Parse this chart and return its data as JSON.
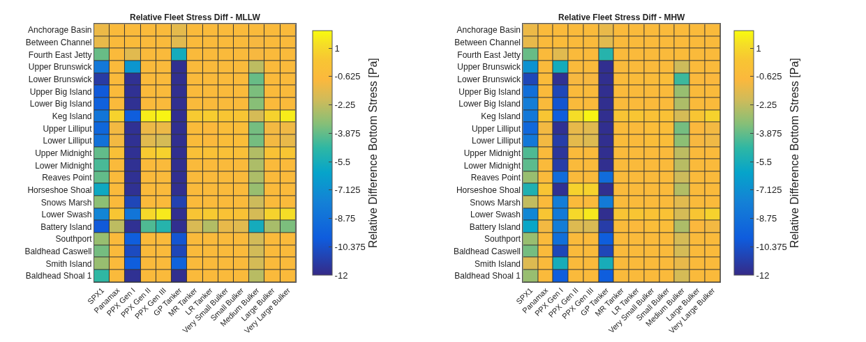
{
  "chart_data": [
    {
      "type": "heatmap",
      "title": "Relative Fleet Stress Diff - MLLW",
      "clabel": "Relative Difference Bottom Stress [Pa]",
      "categories": [
        "SPX1",
        "Panamax",
        "PPX Gen I",
        "PPX Gen II",
        "PPX Gen III",
        "GP Tanker",
        "MR Tanker",
        "LR Tanker",
        "Very Small Bulker",
        "Small Bulker",
        "Medium Bulker",
        "Large Bulker",
        "Very Large Bulker"
      ],
      "y_categories": [
        "Anchorage Basin",
        "Between Channel",
        "Fourth East Jetty",
        "Upper Brunswick",
        "Lower Brunswick",
        "Upper Big Island",
        "Lower Big Island",
        "Keg Island",
        "Upper Lilliput",
        "Lower Lilliput",
        "Upper Midnight",
        "Lower Midnight",
        "Reaves Point",
        "Horseshoe Shoal",
        "Snows Marsh",
        "Lower Swash",
        "Battery Island",
        "Southport",
        "Baldhead Caswell",
        "Smith Island",
        "Baldhead Shoal 1"
      ],
      "cells": [
        [
          -1.2,
          -0.6,
          -0.6,
          -0.6,
          -0.6,
          -1.4,
          -0.6,
          -0.6,
          -0.6,
          -0.6,
          -0.6,
          -0.6,
          -0.6
        ],
        [
          -1.3,
          -0.6,
          -0.5,
          -0.6,
          -0.6,
          -1.5,
          -0.6,
          -0.6,
          -0.6,
          -0.6,
          -0.9,
          -0.6,
          -0.6
        ],
        [
          -3.8,
          -0.6,
          -1.5,
          -0.6,
          -0.6,
          -5.6,
          -0.6,
          -0.6,
          -0.6,
          -0.6,
          -0.9,
          -0.6,
          -0.6
        ],
        [
          -8.3,
          -0.6,
          -6.8,
          -0.6,
          -0.6,
          -11.8,
          -0.6,
          -0.6,
          -0.6,
          -0.6,
          -2.3,
          -0.6,
          -0.6
        ],
        [
          -11.3,
          -0.6,
          -11.7,
          -0.6,
          -0.6,
          -11.8,
          -0.6,
          -0.6,
          -0.6,
          -0.6,
          -3.8,
          -0.6,
          -0.6
        ],
        [
          -10,
          -0.6,
          -11.7,
          -0.6,
          -0.6,
          -11.8,
          -0.6,
          -0.6,
          -0.6,
          -0.6,
          -3.5,
          -0.6,
          -0.6
        ],
        [
          -9.6,
          -0.6,
          -11.7,
          -0.6,
          -0.6,
          -11.8,
          -0.6,
          -0.6,
          -0.6,
          -0.6,
          -3.3,
          -0.6,
          -0.6
        ],
        [
          -8.5,
          0.8,
          -9.8,
          1.6,
          1.8,
          -11.8,
          0.5,
          0.6,
          0.3,
          0.3,
          -1.8,
          0.8,
          1.6
        ],
        [
          -9.3,
          -1.0,
          -11.7,
          -1.2,
          -1.2,
          -11.8,
          -0.5,
          -0.7,
          -0.4,
          -0.4,
          -3.6,
          -1.0,
          -1.1
        ],
        [
          -8.7,
          -1.0,
          -11.7,
          -1.5,
          -1.8,
          -11.8,
          -0.5,
          -0.7,
          -0.4,
          -0.4,
          -3.6,
          -1.0,
          -1.3
        ],
        [
          -3.9,
          -0.1,
          -11.7,
          0.5,
          0.8,
          -11.8,
          -0.1,
          0.0,
          -0.1,
          -0.2,
          -2.5,
          0.1,
          0.3
        ],
        [
          -4.3,
          -0.6,
          -11.7,
          -0.6,
          -0.6,
          -11.8,
          -0.6,
          -0.6,
          -0.6,
          -0.6,
          -2.6,
          -0.6,
          -0.6
        ],
        [
          -3.9,
          -0.6,
          -11.7,
          -0.6,
          -0.6,
          -11.8,
          -0.6,
          -0.6,
          -0.6,
          -0.6,
          -2.6,
          -0.6,
          -0.6
        ],
        [
          -5.8,
          -0.6,
          -11.7,
          -0.6,
          -0.6,
          -11.8,
          -0.6,
          -0.6,
          -0.6,
          -0.6,
          -3.0,
          -0.6,
          -0.6
        ],
        [
          -3.2,
          -0.6,
          -10.8,
          -0.6,
          -0.6,
          -11.0,
          -0.6,
          -0.6,
          -0.6,
          -0.6,
          -2.0,
          -0.6,
          -0.6
        ],
        [
          -7.6,
          0.3,
          -8.5,
          1.0,
          1.5,
          -11.8,
          0.2,
          0.5,
          0.1,
          0.1,
          -1.8,
          0.8,
          1.2
        ],
        [
          -10,
          -2.3,
          -11.7,
          -4.2,
          -5.0,
          -11.8,
          -1.7,
          -2.5,
          -1.3,
          -1.5,
          -5.6,
          -2.7,
          -3.5
        ],
        [
          -3.0,
          -0.6,
          -9.8,
          -0.6,
          -0.6,
          -10.2,
          -0.6,
          -0.6,
          -0.6,
          -0.6,
          -1.9,
          -0.6,
          -0.6
        ],
        [
          -3.6,
          -0.6,
          -10.6,
          -0.6,
          -0.6,
          -10.8,
          -0.6,
          -0.6,
          -0.6,
          -0.6,
          -1.9,
          -0.6,
          -0.6
        ],
        [
          -3.0,
          -0.6,
          -9.8,
          -0.6,
          -0.6,
          -9.5,
          -0.6,
          -0.6,
          -0.6,
          -0.6,
          -1.8,
          -0.6,
          -0.6
        ],
        [
          -4.7,
          -0.6,
          -11.7,
          -0.6,
          -0.6,
          -11.8,
          -0.6,
          -0.6,
          -0.6,
          -0.6,
          -2.4,
          -0.6,
          -0.6
        ]
      ],
      "clim": [
        -12,
        2
      ],
      "cticks": [
        1,
        -0.625,
        -2.25,
        -3.875,
        -5.5,
        -7.125,
        -8.75,
        -10.375,
        -12
      ]
    },
    {
      "type": "heatmap",
      "title": "Relative Fleet Stress Diff - MHW",
      "clabel": "Relative Difference Bottom Stress [Pa]",
      "categories": [
        "SPX1",
        "Panamax",
        "PPX Gen I",
        "PPX Gen II",
        "PPX Gen III",
        "GP Tanker",
        "MR Tanker",
        "LR Tanker",
        "Very Small Bulker",
        "Small Bulker",
        "Medium Bulker",
        "Large Bulker",
        "Very Large Bulker"
      ],
      "y_categories": [
        "Anchorage Basin",
        "Between Channel",
        "Fourth East Jetty",
        "Upper Brunswick",
        "Lower Brunswick",
        "Upper Big Island",
        "Lower Big Island",
        "Keg Island",
        "Upper Lilliput",
        "Lower Lilliput",
        "Upper Midnight",
        "Lower Midnight",
        "Reaves Point",
        "Horseshoe Shoal",
        "Snows Marsh",
        "Lower Swash",
        "Battery Island",
        "Southport",
        "Baldhead Caswell",
        "Smith Island",
        "Baldhead Shoal 1"
      ],
      "cells": [
        [
          -1.2,
          -0.6,
          -0.6,
          -0.6,
          -0.6,
          -1.3,
          -0.6,
          -0.6,
          -0.6,
          -0.6,
          -0.6,
          -0.6,
          -0.6
        ],
        [
          -1.3,
          -0.6,
          -0.5,
          -0.6,
          -0.6,
          -1.5,
          -0.6,
          -0.6,
          -0.6,
          -0.6,
          -0.6,
          -0.6,
          -0.6
        ],
        [
          -3.8,
          -0.6,
          -1.5,
          -0.6,
          -0.6,
          -5.0,
          -0.6,
          -0.6,
          -0.6,
          -0.6,
          -0.5,
          -0.6,
          -0.6
        ],
        [
          -7.0,
          -0.6,
          -5.6,
          -0.6,
          -0.6,
          -11.8,
          -0.6,
          -0.6,
          -0.6,
          -0.6,
          -2.0,
          -0.6,
          -0.6
        ],
        [
          -10.8,
          -0.5,
          -11.7,
          -0.9,
          -0.9,
          -11.8,
          -0.5,
          -0.5,
          -0.5,
          -0.4,
          -4.5,
          -0.7,
          -0.8
        ],
        [
          -8.8,
          -0.6,
          -10.8,
          -0.6,
          -0.6,
          -11.8,
          -0.6,
          -0.6,
          -0.6,
          -0.6,
          -3.0,
          -0.6,
          -0.6
        ],
        [
          -8.0,
          -0.6,
          -10.2,
          -0.6,
          -0.6,
          -11.8,
          -0.6,
          -0.6,
          -0.6,
          -0.6,
          -2.6,
          -0.6,
          -0.6
        ],
        [
          -8.3,
          0.3,
          -9.8,
          1.2,
          1.8,
          -11.8,
          0.2,
          0.3,
          0.0,
          0.0,
          -1.8,
          0.3,
          0.8
        ],
        [
          -9.2,
          -1.0,
          -11.7,
          -1.3,
          -1.5,
          -11.8,
          -0.5,
          -0.6,
          -0.4,
          -0.4,
          -3.6,
          -0.8,
          -1.0
        ],
        [
          -8.3,
          -1.0,
          -11.2,
          -1.4,
          -1.6,
          -11.8,
          -0.5,
          -0.6,
          -0.4,
          -0.4,
          -3.2,
          -0.9,
          -1.1
        ],
        [
          -4.2,
          -0.6,
          -11.5,
          -0.6,
          -0.6,
          -11.8,
          -0.6,
          -0.6,
          -0.6,
          -0.6,
          -2.3,
          -0.6,
          -0.6
        ],
        [
          -4.0,
          -0.6,
          -11.2,
          -0.6,
          -0.6,
          -11.8,
          -0.6,
          -0.6,
          -0.6,
          -0.6,
          -2.4,
          -0.6,
          -0.6
        ],
        [
          -3.0,
          -0.6,
          -9.0,
          -0.6,
          -0.6,
          -9.0,
          -0.6,
          -0.6,
          -0.6,
          -0.6,
          -2.0,
          -0.6,
          -0.6
        ],
        [
          -5.2,
          0.2,
          -11.7,
          0.8,
          0.8,
          -11.8,
          -0.6,
          -0.6,
          -0.6,
          -0.6,
          -2.5,
          -0.6,
          -0.6
        ],
        [
          -2.2,
          -0.6,
          -8.0,
          -0.6,
          -0.6,
          -8.2,
          -0.6,
          -0.6,
          -0.6,
          -0.6,
          -1.5,
          -0.6,
          -0.6
        ],
        [
          -7.5,
          0.3,
          -8.2,
          1.0,
          1.5,
          -11.8,
          0.2,
          0.3,
          0.1,
          0.1,
          -1.8,
          0.3,
          0.8
        ],
        [
          -6.0,
          -1.0,
          -8.0,
          -1.6,
          -1.7,
          -11.2,
          -0.5,
          -0.7,
          -0.4,
          -0.4,
          -2.6,
          -0.8,
          -1.0
        ],
        [
          -3.0,
          -0.6,
          -8.8,
          -0.6,
          -0.6,
          -9.8,
          -0.6,
          -0.6,
          -0.6,
          -0.6,
          -1.8,
          -0.6,
          -0.6
        ],
        [
          -3.6,
          -0.6,
          -10.8,
          -0.6,
          -0.6,
          -10.8,
          -0.6,
          -0.6,
          -0.6,
          -0.6,
          -1.8,
          -0.6,
          -0.6
        ],
        [
          -1.6,
          -0.6,
          -5.5,
          -0.6,
          -0.6,
          -5.5,
          -0.6,
          -0.6,
          -0.6,
          -0.6,
          -1.3,
          -0.6,
          -0.6
        ],
        [
          -3.0,
          -0.6,
          -9.8,
          -0.6,
          -0.6,
          -9.8,
          -0.6,
          -0.6,
          -0.6,
          -0.6,
          -1.8,
          -0.6,
          -0.6
        ]
      ],
      "clim": [
        -12,
        2
      ],
      "cticks": [
        1,
        -0.625,
        -2.25,
        -3.875,
        -5.5,
        -7.125,
        -8.75,
        -10.375,
        -12
      ]
    }
  ]
}
